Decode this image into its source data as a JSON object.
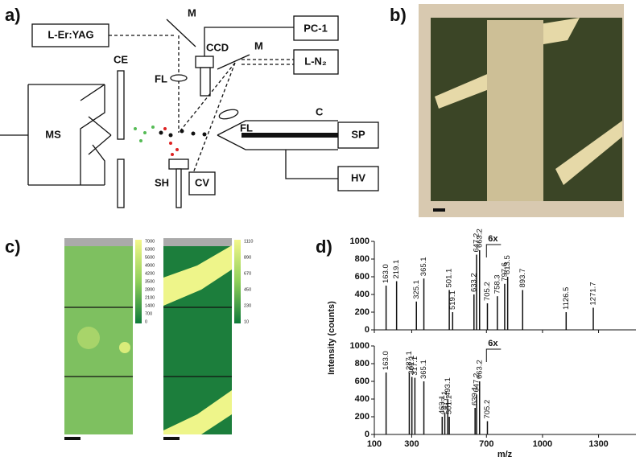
{
  "panel_a": {
    "label": "a)",
    "laser": "L-Er:YAG",
    "mirror_1": "M",
    "ccd": "CCD",
    "pc": "PC-1",
    "mirror_2": "M",
    "nitrogen_laser": "L-N₂",
    "ce": "CE",
    "fl_1": "FL",
    "fl_2": "FL",
    "ms": "MS",
    "capillary": "C",
    "sp": "SP",
    "sh": "SH",
    "cv": "CV",
    "hv": "HV"
  },
  "panel_b": {
    "label": "b)"
  },
  "panel_c": {
    "label": "c)",
    "colorbars": [
      {
        "ticks": [
          7000,
          6300,
          5600,
          4900,
          4200,
          3500,
          2800,
          2100,
          1400,
          700,
          0
        ]
      },
      {
        "ticks": [
          1110,
          890,
          670,
          450,
          230,
          10
        ]
      }
    ]
  },
  "panel_d": {
    "label": "d)",
    "y_label": "Intensity (counts)",
    "x_label": "m/z",
    "xlim": [
      100,
      1500
    ],
    "xticks": [
      100,
      300,
      700,
      1000,
      1300
    ],
    "ylim": [
      0,
      1000
    ],
    "yticks": [
      0,
      200,
      400,
      600,
      800,
      1000
    ],
    "spectra": [
      {
        "zoom_label": "6x",
        "peaks": [
          {
            "value": 163.0,
            "label": "163.0",
            "intensity": 500
          },
          {
            "value": 219.1,
            "label": "219.1",
            "intensity": 550
          },
          {
            "value": 325.1,
            "label": "325.1",
            "intensity": 320
          },
          {
            "value": 365.1,
            "label": "365.1",
            "intensity": 580
          },
          {
            "value": 501.1,
            "label": "501.1",
            "intensity": 450
          },
          {
            "value": 519.1,
            "label": "519.1",
            "intensity": 200
          },
          {
            "value": 633.2,
            "label": "633.2",
            "intensity": 400
          },
          {
            "value": 647.2,
            "label": "647.2",
            "intensity": 850
          },
          {
            "value": 663.2,
            "label": "663.2",
            "intensity": 900
          },
          {
            "value": 705.2,
            "label": "705.2",
            "intensity": 300
          },
          {
            "value": 758.3,
            "label": "758.3",
            "intensity": 380
          },
          {
            "value": 797.6,
            "label": "797.6",
            "intensity": 520
          },
          {
            "value": 813.5,
            "label": "813.5",
            "intensity": 600
          },
          {
            "value": 893.7,
            "label": "893.7",
            "intensity": 450
          },
          {
            "value": 1126.5,
            "label": "1126.5",
            "intensity": 200
          },
          {
            "value": 1271.7,
            "label": "1271.7",
            "intensity": 250
          }
        ]
      },
      {
        "zoom_label": "6x",
        "peaks": [
          {
            "value": 163.0,
            "label": "163.0",
            "intensity": 700
          },
          {
            "value": 287.1,
            "label": "287.1",
            "intensity": 700
          },
          {
            "value": 301.1,
            "label": "301.1",
            "intensity": 650
          },
          {
            "value": 317.1,
            "label": "317.1",
            "intensity": 640
          },
          {
            "value": 365.1,
            "label": "365.1",
            "intensity": 600
          },
          {
            "value": 463.1,
            "label": "463.1",
            "intensity": 200
          },
          {
            "value": 477.1,
            "label": "477.1",
            "intensity": 250
          },
          {
            "value": 493.1,
            "label": "493.1",
            "intensity": 400
          },
          {
            "value": 501.1,
            "label": "501.1",
            "intensity": 200
          },
          {
            "value": 639.1,
            "label": "639.1",
            "intensity": 300
          },
          {
            "value": 647.2,
            "label": "647.2",
            "intensity": 450
          },
          {
            "value": 663.2,
            "label": "663.2",
            "intensity": 600
          },
          {
            "value": 705.2,
            "label": "705.2",
            "intensity": 150
          }
        ]
      }
    ]
  }
}
